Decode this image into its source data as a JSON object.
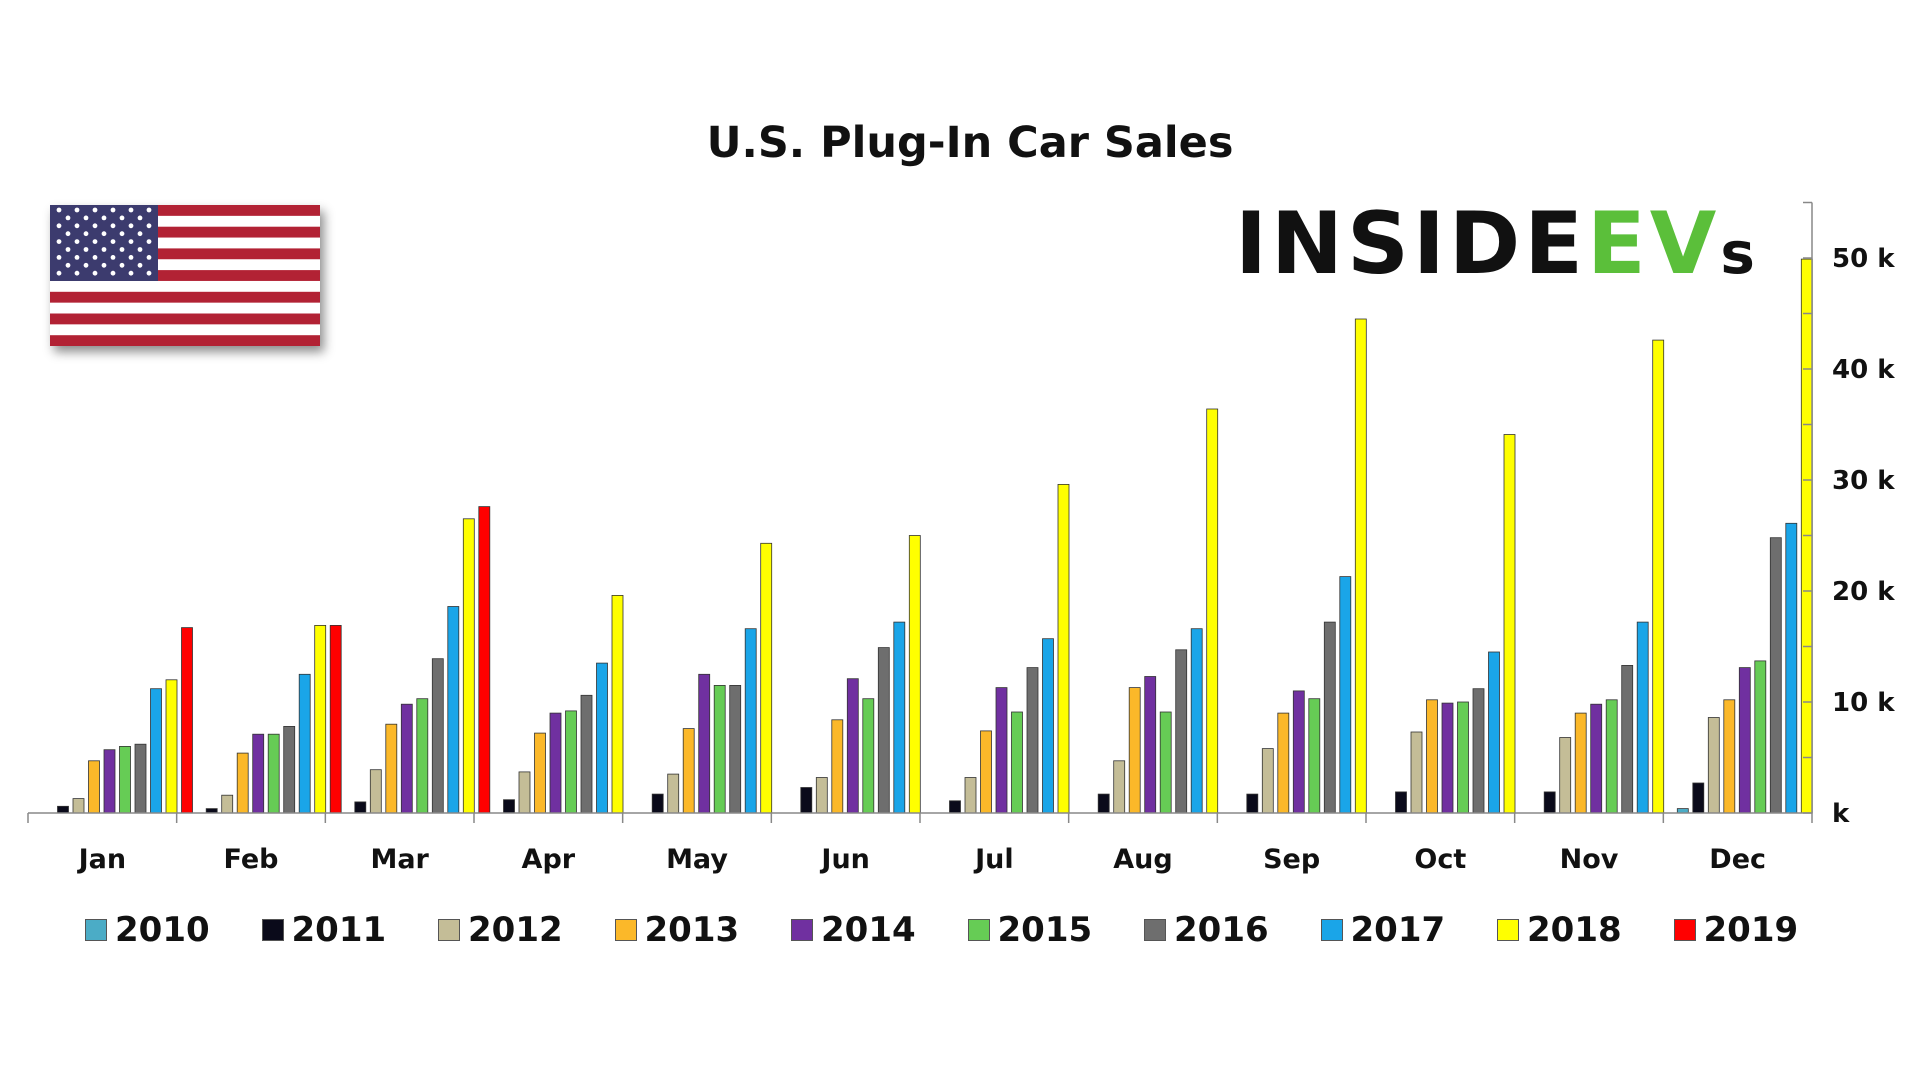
{
  "brand": {
    "logo_text_dark": "INSIDE",
    "logo_text_green": "EV",
    "logo_text_small": "s",
    "green": "#5bbf3a"
  },
  "flag": {
    "icon": "us-flag-icon"
  },
  "chart_data": {
    "type": "bar",
    "title": "U.S. Plug-In Car Sales",
    "xlabel": "",
    "ylabel": "",
    "categories": [
      "Jan",
      "Feb",
      "Mar",
      "Apr",
      "May",
      "Jun",
      "Jul",
      "Aug",
      "Sep",
      "Oct",
      "Nov",
      "Dec"
    ],
    "ylim": [
      0,
      55000
    ],
    "yticks": [
      0,
      10000,
      20000,
      30000,
      40000,
      50000
    ],
    "ytick_labels": [
      "k",
      "10 k",
      "20 k",
      "30 k",
      "40 k",
      "50 k"
    ],
    "legend_position": "bottom",
    "grid": false,
    "series": [
      {
        "name": "2010",
        "color": "#4bacc6",
        "values": [
          null,
          null,
          null,
          null,
          null,
          null,
          null,
          null,
          null,
          null,
          null,
          400
        ]
      },
      {
        "name": "2011",
        "color": "#0a0a1a",
        "values": [
          600,
          400,
          1000,
          1200,
          1700,
          2300,
          1100,
          1700,
          1700,
          1900,
          1900,
          2700
        ]
      },
      {
        "name": "2012",
        "color": "#c4bd97",
        "values": [
          1300,
          1600,
          3900,
          3700,
          3500,
          3200,
          3200,
          4700,
          5800,
          7300,
          6800,
          8600
        ]
      },
      {
        "name": "2013",
        "color": "#fbb829",
        "values": [
          4700,
          5400,
          8000,
          7200,
          7600,
          8400,
          7400,
          11300,
          9000,
          10200,
          9000,
          10200
        ]
      },
      {
        "name": "2014",
        "color": "#7030a0",
        "values": [
          5700,
          7100,
          9800,
          9000,
          12500,
          12100,
          11300,
          12300,
          11000,
          9900,
          9800,
          13100
        ]
      },
      {
        "name": "2015",
        "color": "#66cc55",
        "values": [
          6000,
          7100,
          10300,
          9200,
          11500,
          10300,
          9100,
          9100,
          10300,
          10000,
          10200,
          13700
        ]
      },
      {
        "name": "2016",
        "color": "#6e6e6e",
        "values": [
          6200,
          7800,
          13900,
          10600,
          11500,
          14900,
          13100,
          14700,
          17200,
          11200,
          13300,
          24800
        ]
      },
      {
        "name": "2017",
        "color": "#1aa5e8",
        "values": [
          11200,
          12500,
          18600,
          13500,
          16600,
          17200,
          15700,
          16600,
          21300,
          14500,
          17200,
          26100
        ]
      },
      {
        "name": "2018",
        "color": "#ffff00",
        "values": [
          12000,
          16900,
          26500,
          19600,
          24300,
          25000,
          29600,
          36400,
          44500,
          34100,
          42600,
          49900
        ]
      },
      {
        "name": "2019",
        "color": "#ff0000",
        "values": [
          16700,
          16900,
          27600,
          null,
          null,
          null,
          null,
          null,
          null,
          null,
          null,
          null
        ]
      }
    ]
  }
}
